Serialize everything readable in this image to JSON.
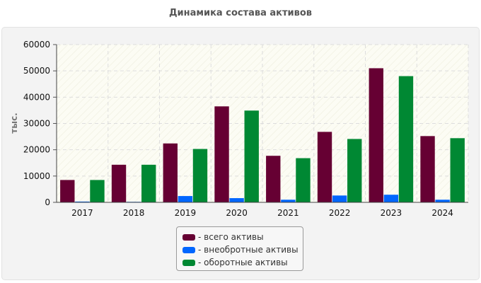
{
  "chart_data": {
    "type": "bar",
    "title": "Динамика состава активов",
    "ylabel": "тыс.",
    "xlabel": "",
    "categories": [
      "2017",
      "2018",
      "2019",
      "2020",
      "2021",
      "2022",
      "2023",
      "2024"
    ],
    "series": [
      {
        "name": "- всего активы",
        "color": "#660033",
        "values": [
          8500,
          14300,
          22400,
          36500,
          17700,
          26800,
          51000,
          25200
        ]
      },
      {
        "name": "- внеобротные активы",
        "color": "#0066ff",
        "values": [
          300,
          200,
          2400,
          1600,
          1000,
          2600,
          2900,
          1000
        ]
      },
      {
        "name": "- оборотные активы",
        "color": "#008833",
        "values": [
          8500,
          14300,
          20300,
          34900,
          16800,
          24100,
          48000,
          24400
        ]
      }
    ],
    "ylim": [
      0,
      60000
    ],
    "yticks": [
      "0",
      "10000",
      "20000",
      "30000",
      "40000",
      "50000",
      "60000"
    ],
    "grid": true,
    "legend": "bottom"
  }
}
